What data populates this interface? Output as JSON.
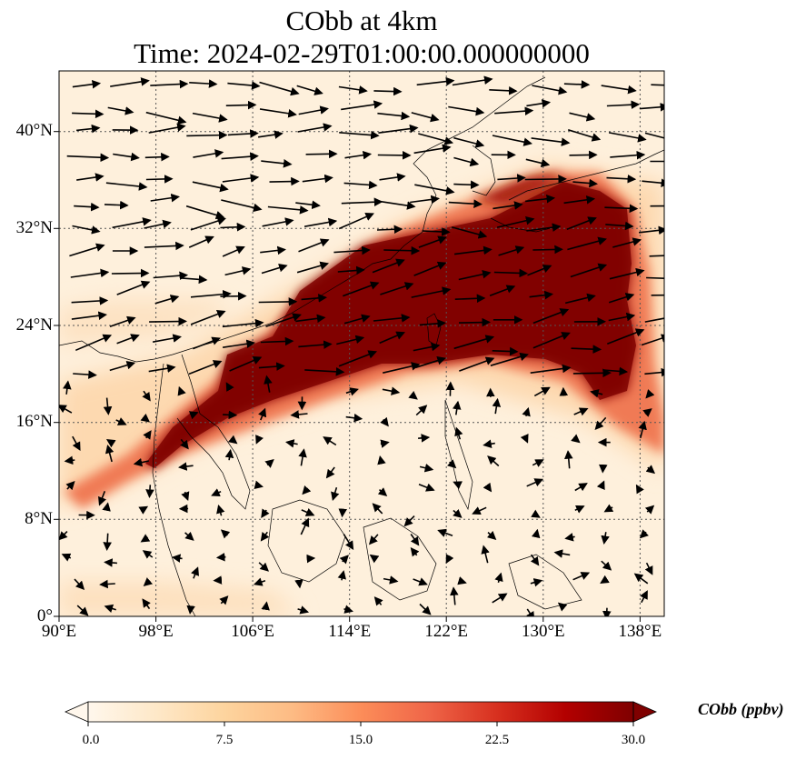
{
  "title_line1": "CObb at 4km",
  "title_line2": "Time: 2024-02-29T01:00:00.000000000",
  "lat_ticks": [
    "40°N",
    "32°N",
    "24°N",
    "16°N",
    "8°N",
    "0°"
  ],
  "lon_ticks": [
    "90°E",
    "98°E",
    "106°E",
    "114°E",
    "122°E",
    "130°E",
    "138°E"
  ],
  "lat_values": [
    40,
    32,
    24,
    16,
    8,
    0
  ],
  "lon_values": [
    90,
    98,
    106,
    114,
    122,
    130,
    138
  ],
  "extent": {
    "lon_min": 90,
    "lon_max": 140,
    "lat_min": 0,
    "lat_max": 45
  },
  "colorbar": {
    "label": "CObb (ppbv)",
    "ticks": [
      "0.0",
      "7.5",
      "15.0",
      "22.5",
      "30.0"
    ],
    "min": 0,
    "max": 30,
    "colormap": "OrRd",
    "colors": [
      "#fff7ec",
      "#fee8c8",
      "#fdd49e",
      "#fdbb84",
      "#fc8d59",
      "#ef6548",
      "#d7301f",
      "#b30000",
      "#7f0000"
    ]
  },
  "chart_data": {
    "type": "heatmap",
    "variable": "CObb",
    "level": "4km",
    "units": "ppbv",
    "plume_core": [
      [
        100,
        13
      ],
      [
        104,
        17
      ],
      [
        108,
        20
      ],
      [
        112,
        23
      ],
      [
        116,
        26
      ],
      [
        120,
        28
      ],
      [
        124,
        30
      ],
      [
        128,
        31
      ],
      [
        132,
        30
      ],
      [
        135,
        26
      ],
      [
        133,
        22
      ],
      [
        128,
        22
      ],
      [
        122,
        22
      ],
      [
        116,
        21
      ],
      [
        110,
        19
      ]
    ],
    "wind_vectors": "quiver field, predominantly westerly/west-southwesterly north of 20°N, weak and variable south of 16°N"
  }
}
